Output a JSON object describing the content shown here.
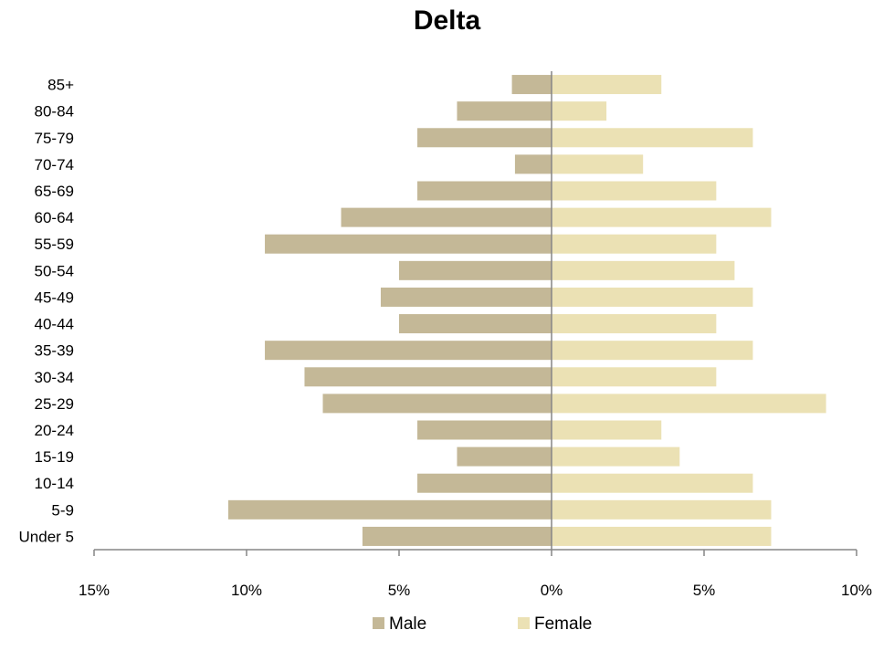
{
  "chart_data": {
    "type": "bar",
    "orientation": "horizontal",
    "title": "Delta",
    "categories": [
      "85+",
      "80-84",
      "75-79",
      "70-74",
      "65-69",
      "60-64",
      "55-59",
      "50-54",
      "45-49",
      "40-44",
      "35-39",
      "30-34",
      "25-29",
      "20-24",
      "15-19",
      "10-14",
      "5-9",
      "Under 5"
    ],
    "series": [
      {
        "name": "Male",
        "color": "#c4b897",
        "values": [
          1.3,
          3.1,
          4.4,
          1.2,
          4.4,
          6.9,
          9.4,
          5.0,
          5.6,
          5.0,
          9.4,
          8.1,
          7.5,
          4.4,
          3.1,
          4.4,
          10.6,
          6.2
        ]
      },
      {
        "name": "Female",
        "color": "#ebe1b4",
        "values": [
          3.6,
          1.8,
          6.6,
          3.0,
          5.4,
          7.2,
          5.4,
          6.0,
          6.6,
          5.4,
          6.6,
          5.4,
          9.0,
          3.6,
          4.2,
          6.6,
          7.2,
          7.2
        ]
      }
    ],
    "x_ticks": [
      "15%",
      "10%",
      "5%",
      "0%",
      "5%",
      "10%"
    ],
    "xlim": [
      -15,
      10
    ],
    "unit": "%",
    "legend_position": "bottom",
    "grid": false
  }
}
